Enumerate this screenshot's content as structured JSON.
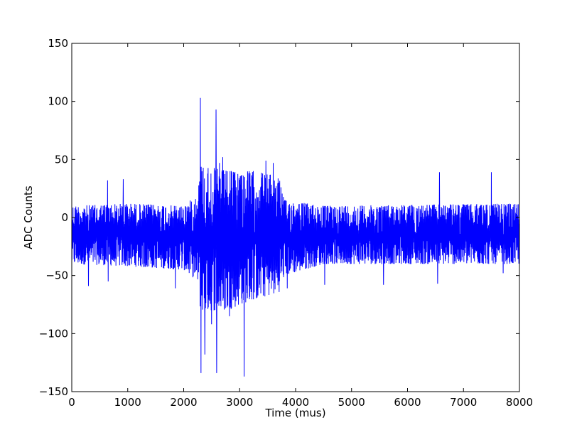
{
  "chart_data": {
    "type": "line",
    "title": "",
    "xlabel": "Time (mus)",
    "ylabel": "ADC Counts",
    "xlim": [
      0,
      8000
    ],
    "ylim": [
      -150,
      150
    ],
    "xticks": [
      0,
      1000,
      2000,
      3000,
      4000,
      5000,
      6000,
      7000,
      8000
    ],
    "yticks": [
      -150,
      -100,
      -50,
      0,
      50,
      100,
      150
    ],
    "xtick_labels": [
      "0",
      "1000",
      "2000",
      "3000",
      "4000",
      "5000",
      "6000",
      "7000",
      "8000"
    ],
    "ytick_labels": [
      "−150",
      "−100",
      "−50",
      "0",
      "50",
      "100",
      "150"
    ],
    "grid": false,
    "line_color": "#0000ff",
    "series": [
      {
        "baseline": -15,
        "noise_envelope": [
          {
            "x": 0,
            "min": -40,
            "max": 10
          },
          {
            "x": 1000,
            "min": -42,
            "max": 12
          },
          {
            "x": 2000,
            "min": -45,
            "max": 10
          },
          {
            "x": 2250,
            "min": -55,
            "max": 20
          },
          {
            "x": 2300,
            "min": -80,
            "max": 45
          },
          {
            "x": 2800,
            "min": -80,
            "max": 40
          },
          {
            "x": 3000,
            "min": -75,
            "max": 40
          },
          {
            "x": 3300,
            "min": -70,
            "max": 40
          },
          {
            "x": 3700,
            "min": -65,
            "max": 35
          },
          {
            "x": 3800,
            "min": -50,
            "max": 15
          },
          {
            "x": 4500,
            "min": -40,
            "max": 10
          },
          {
            "x": 8000,
            "min": -40,
            "max": 12
          }
        ],
        "spikes": [
          {
            "x": 300,
            "y": -59
          },
          {
            "x": 640,
            "y": 32
          },
          {
            "x": 650,
            "y": -55
          },
          {
            "x": 920,
            "y": 33
          },
          {
            "x": 1850,
            "y": -61
          },
          {
            "x": 2300,
            "y": 103
          },
          {
            "x": 2310,
            "y": -134
          },
          {
            "x": 2380,
            "y": -118
          },
          {
            "x": 2500,
            "y": -92
          },
          {
            "x": 2580,
            "y": 93
          },
          {
            "x": 2590,
            "y": -134
          },
          {
            "x": 2640,
            "y": 47
          },
          {
            "x": 2700,
            "y": 52
          },
          {
            "x": 2820,
            "y": -85
          },
          {
            "x": 3080,
            "y": -137
          },
          {
            "x": 3470,
            "y": 49
          },
          {
            "x": 3600,
            "y": 47
          },
          {
            "x": 3850,
            "y": -61
          },
          {
            "x": 4520,
            "y": -58
          },
          {
            "x": 5570,
            "y": -58
          },
          {
            "x": 6540,
            "y": -57
          },
          {
            "x": 6570,
            "y": 39
          },
          {
            "x": 7500,
            "y": 39
          },
          {
            "x": 7710,
            "y": -48
          }
        ]
      }
    ]
  }
}
